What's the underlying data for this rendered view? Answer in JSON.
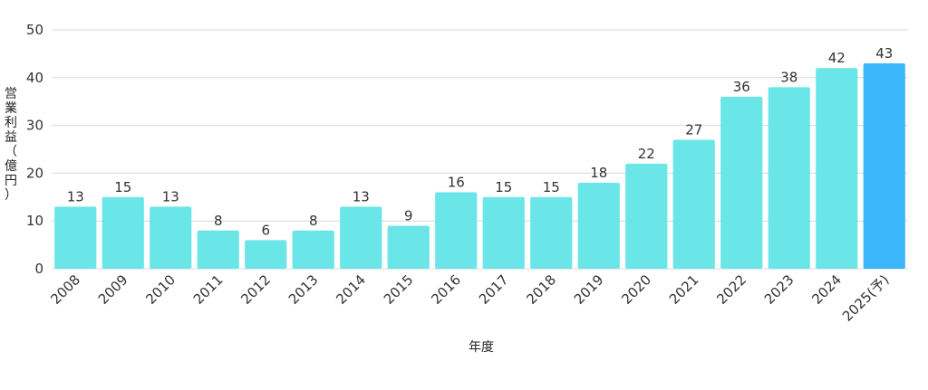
{
  "chart_data": {
    "type": "bar",
    "title": "",
    "xlabel": "年度",
    "ylabel": "営業利益（億円）",
    "ylim": [
      0,
      50
    ],
    "yticks": [
      0,
      10,
      20,
      30,
      40,
      50
    ],
    "grid": true,
    "categories": [
      "2008",
      "2009",
      "2010",
      "2011",
      "2012",
      "2013",
      "2014",
      "2015",
      "2016",
      "2017",
      "2018",
      "2019",
      "2020",
      "2021",
      "2022",
      "2023",
      "2024",
      "2025(予)"
    ],
    "values": [
      13,
      15,
      13,
      8,
      6,
      8,
      13,
      9,
      16,
      15,
      15,
      18,
      22,
      27,
      36,
      38,
      42,
      43
    ],
    "bar_color": "#6ae6e8",
    "highlight_color": "#3bb6fb",
    "highlight_index": 17
  }
}
